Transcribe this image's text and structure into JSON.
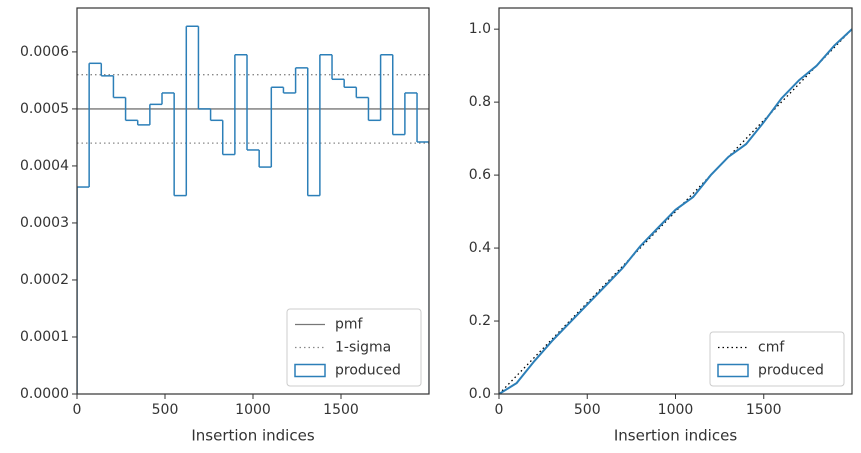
{
  "chart_data": [
    {
      "type": "histogram",
      "xlabel": "Insertion indices",
      "bins": [
        0,
        69,
        138,
        207,
        276,
        345,
        414,
        483,
        552,
        621,
        690,
        759,
        828,
        897,
        966,
        1035,
        1104,
        1173,
        1242,
        1311,
        1380,
        1449,
        1518,
        1587,
        1656,
        1725,
        1794,
        1863,
        1932,
        2001
      ],
      "series": [
        {
          "name": "produced",
          "color": "#2c7fb8",
          "values": [
            0.000363,
            0.00058,
            0.000558,
            0.00052,
            0.00048,
            0.000472,
            0.000508,
            0.000528,
            0.000348,
            0.000645,
            0.0005,
            0.00048,
            0.00042,
            0.000595,
            0.000428,
            0.000398,
            0.000538,
            0.000528,
            0.000572,
            0.000348,
            0.000595,
            0.000552,
            0.000538,
            0.00052,
            0.00048,
            0.000595,
            0.000455,
            0.000528,
            0.000442
          ]
        }
      ],
      "hlines": [
        {
          "name": "pmf",
          "values": [
            0.0005
          ],
          "color": "#777777",
          "style": "solid"
        },
        {
          "name": "1-sigma",
          "values": [
            0.00044,
            0.00056
          ],
          "color": "#888888",
          "style": "dotted"
        }
      ],
      "xlim": [
        0,
        2000
      ],
      "ylim": [
        0,
        0.000677
      ],
      "xticks": [
        0,
        500,
        1000,
        1500
      ],
      "yticks": [
        {
          "value": 0,
          "label": "0.0000"
        },
        {
          "value": 0.0001,
          "label": "0.0001"
        },
        {
          "value": 0.0002,
          "label": "0.0002"
        },
        {
          "value": 0.0003,
          "label": "0.0003"
        },
        {
          "value": 0.0004,
          "label": "0.0004"
        },
        {
          "value": 0.0005,
          "label": "0.0005"
        },
        {
          "value": 0.0006,
          "label": "0.0006"
        }
      ],
      "legend": "lower right"
    },
    {
      "type": "line",
      "xlabel": "Insertion indices",
      "series": [
        {
          "name": "cmf",
          "color": "#000000",
          "style": "dotted",
          "x": [
            0,
            2000
          ],
          "values": [
            0,
            1
          ]
        },
        {
          "name": "produced",
          "color": "#2c7fb8",
          "style": "solid",
          "x": [
            0,
            100,
            200,
            300,
            400,
            500,
            600,
            700,
            800,
            900,
            1000,
            1100,
            1200,
            1300,
            1400,
            1500,
            1600,
            1700,
            1800,
            1900,
            2000
          ],
          "values": [
            0,
            0.03,
            0.09,
            0.145,
            0.195,
            0.245,
            0.295,
            0.345,
            0.405,
            0.455,
            0.505,
            0.54,
            0.6,
            0.65,
            0.685,
            0.745,
            0.81,
            0.86,
            0.9,
            0.955,
            1.0
          ]
        }
      ],
      "xlim": [
        0,
        2000
      ],
      "ylim": [
        0,
        1.058
      ],
      "xticks": [
        0,
        500,
        1000,
        1500
      ],
      "yticks": [
        {
          "value": 0,
          "label": "0.0"
        },
        {
          "value": 0.2,
          "label": "0.2"
        },
        {
          "value": 0.4,
          "label": "0.4"
        },
        {
          "value": 0.6,
          "label": "0.6"
        },
        {
          "value": 0.8,
          "label": "0.8"
        },
        {
          "value": 1,
          "label": "1.0"
        }
      ],
      "legend": "lower right"
    }
  ]
}
